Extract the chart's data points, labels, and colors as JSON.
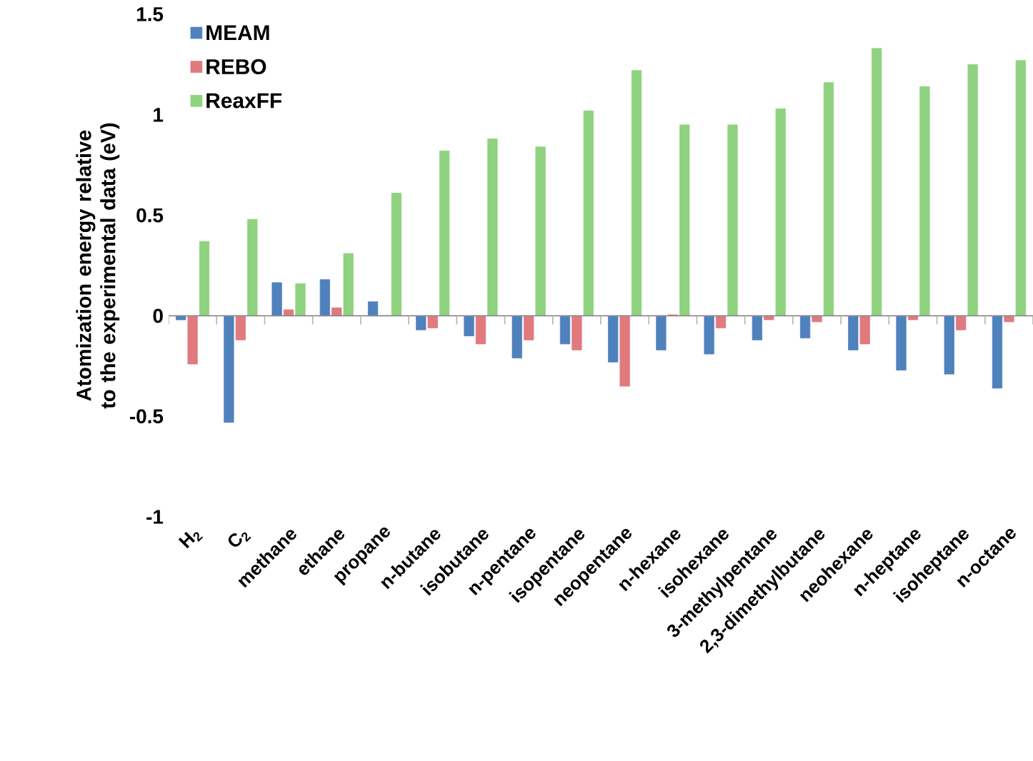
{
  "chart_data": {
    "type": "bar",
    "ylabel": "Atomization energy relative to the experimental data (eV)",
    "categories": [
      "H$_{2}$",
      "C$_{2}$",
      "methane",
      "ethane",
      "propane",
      "n-butane",
      "isobutane",
      "n-pentane",
      "isopentane",
      "neopentane",
      "n-hexane",
      "isohexane",
      "3-methylpentane",
      "2,3-dimethylbutane",
      "neohexane",
      "n-heptane",
      "isoheptane",
      "n-octane"
    ],
    "series": [
      {
        "name": "MEAM",
        "color": "#4f81bd",
        "values": [
          -0.02,
          -0.53,
          0.165,
          0.18,
          0.07,
          -0.07,
          -0.1,
          -0.21,
          -0.14,
          -0.23,
          -0.17,
          -0.19,
          -0.12,
          -0.11,
          -0.17,
          -0.27,
          -0.29,
          -0.36
        ]
      },
      {
        "name": "REBO",
        "color": "#e07a7f",
        "values": [
          -0.24,
          -0.12,
          0.03,
          0.04,
          0.0,
          -0.06,
          -0.14,
          -0.12,
          -0.17,
          -0.35,
          0.005,
          -0.06,
          -0.02,
          -0.03,
          -0.14,
          -0.02,
          -0.07,
          -0.03
        ]
      },
      {
        "name": "ReaxFF",
        "color": "#8fd27f",
        "values": [
          0.37,
          0.48,
          0.16,
          0.31,
          0.61,
          0.82,
          0.88,
          0.84,
          1.02,
          1.22,
          0.95,
          0.95,
          1.03,
          1.16,
          1.33,
          1.14,
          1.25,
          1.27
        ]
      }
    ],
    "ylim": [
      -1,
      1.5
    ],
    "yticks": [
      -1,
      -0.5,
      0,
      0.5,
      1,
      1.5
    ],
    "legend": "top left"
  }
}
